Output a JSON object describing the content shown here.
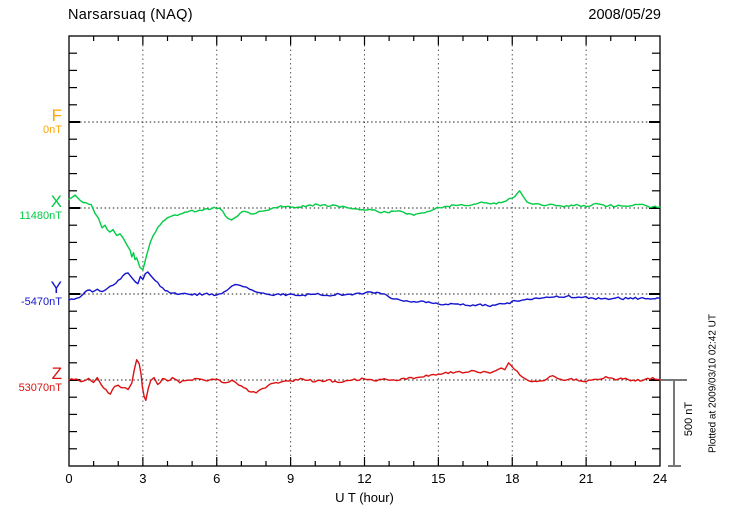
{
  "header": {
    "title": "Narsarsuaq (NAQ)",
    "date": "2008/05/29"
  },
  "axis": {
    "xlabel": "U T (hour)"
  },
  "scale_bar": {
    "label": "500 nT",
    "nT": 500
  },
  "footer_note": "Plotted at 2009/03/10 02:42 UT",
  "chart_data": {
    "type": "line",
    "title": "Narsarsuaq (NAQ)",
    "date": "2008/05/29",
    "xlabel": "U T (hour)",
    "x_range": [
      0,
      24
    ],
    "x_ticks": [
      0,
      3,
      6,
      9,
      12,
      15,
      18,
      21,
      24
    ],
    "grid": true,
    "y_unit": "nT",
    "minor_tick_nT": 100,
    "trace_spacing_nT": 500,
    "scale_bar_nT": 500,
    "series": [
      {
        "name": "F",
        "color": "#FFA500",
        "baseline_nT": 0,
        "baseline_label": "0nT",
        "points": []
      },
      {
        "name": "X",
        "color": "#00CC44",
        "baseline_nT": 11480,
        "baseline_label": "11480nT",
        "points": [
          [
            0,
            52
          ],
          [
            0.25,
            75
          ],
          [
            0.45,
            45
          ],
          [
            0.7,
            30
          ],
          [
            0.9,
            20
          ],
          [
            1.05,
            -30
          ],
          [
            1.2,
            -60
          ],
          [
            1.34,
            -115
          ],
          [
            1.46,
            -100
          ],
          [
            1.55,
            -125
          ],
          [
            1.66,
            -140
          ],
          [
            1.79,
            -125
          ],
          [
            1.95,
            -160
          ],
          [
            2.07,
            -150
          ],
          [
            2.2,
            -175
          ],
          [
            2.35,
            -215
          ],
          [
            2.48,
            -245
          ],
          [
            2.55,
            -285
          ],
          [
            2.62,
            -260
          ],
          [
            2.68,
            -300
          ],
          [
            2.75,
            -290
          ],
          [
            2.88,
            -345
          ],
          [
            3.0,
            -360
          ],
          [
            3.15,
            -275
          ],
          [
            3.3,
            -200
          ],
          [
            3.42,
            -160
          ],
          [
            3.62,
            -110
          ],
          [
            3.9,
            -70
          ],
          [
            4.3,
            -40
          ],
          [
            4.8,
            -23
          ],
          [
            5.3,
            -12
          ],
          [
            5.8,
            -3
          ],
          [
            6.1,
            0
          ],
          [
            6.25,
            -20
          ],
          [
            6.45,
            -60
          ],
          [
            6.6,
            -70
          ],
          [
            6.75,
            -55
          ],
          [
            6.95,
            -30
          ],
          [
            7.15,
            -20
          ],
          [
            7.4,
            -35
          ],
          [
            7.6,
            -30
          ],
          [
            7.9,
            -18
          ],
          [
            8.2,
            -5
          ],
          [
            8.5,
            5
          ],
          [
            8.9,
            10
          ],
          [
            9.3,
            5
          ],
          [
            9.7,
            15
          ],
          [
            10.1,
            20
          ],
          [
            10.5,
            10
          ],
          [
            10.9,
            12
          ],
          [
            11.3,
            2
          ],
          [
            11.7,
            -5
          ],
          [
            12.1,
            -12
          ],
          [
            12.5,
            -18
          ],
          [
            12.9,
            -25
          ],
          [
            13.3,
            -18
          ],
          [
            13.7,
            -35
          ],
          [
            14.1,
            -35
          ],
          [
            14.45,
            -28
          ],
          [
            14.75,
            -12
          ],
          [
            15.05,
            2
          ],
          [
            15.35,
            10
          ],
          [
            15.65,
            16
          ],
          [
            15.95,
            20
          ],
          [
            16.25,
            14
          ],
          [
            16.55,
            24
          ],
          [
            16.85,
            30
          ],
          [
            17.15,
            24
          ],
          [
            17.45,
            33
          ],
          [
            17.75,
            40
          ],
          [
            18.0,
            58
          ],
          [
            18.3,
            100
          ],
          [
            18.45,
            66
          ],
          [
            18.6,
            35
          ],
          [
            18.85,
            22
          ],
          [
            19.2,
            16
          ],
          [
            19.55,
            22
          ],
          [
            19.9,
            14
          ],
          [
            20.3,
            10
          ],
          [
            20.7,
            16
          ],
          [
            21.1,
            10
          ],
          [
            21.5,
            24
          ],
          [
            21.9,
            12
          ],
          [
            22.3,
            16
          ],
          [
            22.7,
            10
          ],
          [
            23.1,
            20
          ],
          [
            23.5,
            10
          ],
          [
            24,
            5
          ]
        ]
      },
      {
        "name": "Y",
        "color": "#1414CC",
        "baseline_nT": -5470,
        "baseline_label": "-5470nT",
        "points": [
          [
            0,
            -35
          ],
          [
            0.3,
            -25
          ],
          [
            0.55,
            -5
          ],
          [
            0.75,
            22
          ],
          [
            0.95,
            12
          ],
          [
            1.15,
            28
          ],
          [
            1.35,
            14
          ],
          [
            1.55,
            32
          ],
          [
            1.8,
            52
          ],
          [
            2.0,
            80
          ],
          [
            2.2,
            108
          ],
          [
            2.4,
            122
          ],
          [
            2.55,
            95
          ],
          [
            2.7,
            70
          ],
          [
            2.8,
            60
          ],
          [
            2.9,
            102
          ],
          [
            3.0,
            85
          ],
          [
            3.1,
            118
          ],
          [
            3.2,
            128
          ],
          [
            3.35,
            102
          ],
          [
            3.5,
            78
          ],
          [
            3.7,
            45
          ],
          [
            3.9,
            20
          ],
          [
            4.1,
            6
          ],
          [
            4.5,
            0
          ],
          [
            5.0,
            -6
          ],
          [
            5.5,
            0
          ],
          [
            6.0,
            -6
          ],
          [
            6.2,
            2
          ],
          [
            6.4,
            20
          ],
          [
            6.6,
            45
          ],
          [
            6.75,
            55
          ],
          [
            6.95,
            50
          ],
          [
            7.2,
            40
          ],
          [
            7.45,
            22
          ],
          [
            7.7,
            8
          ],
          [
            8.0,
            0
          ],
          [
            8.6,
            -6
          ],
          [
            9.0,
            0
          ],
          [
            9.5,
            -6
          ],
          [
            10.0,
            -2
          ],
          [
            10.5,
            -8
          ],
          [
            11.0,
            -2
          ],
          [
            11.5,
            -6
          ],
          [
            12.0,
            4
          ],
          [
            12.3,
            10
          ],
          [
            12.7,
            0
          ],
          [
            13.0,
            -18
          ],
          [
            13.5,
            -38
          ],
          [
            14.0,
            -44
          ],
          [
            14.5,
            -50
          ],
          [
            15.0,
            -58
          ],
          [
            15.4,
            -62
          ],
          [
            15.8,
            -58
          ],
          [
            16.2,
            -66
          ],
          [
            16.6,
            -62
          ],
          [
            17.0,
            -68
          ],
          [
            17.4,
            -60
          ],
          [
            17.8,
            -52
          ],
          [
            18.2,
            -42
          ],
          [
            18.7,
            -32
          ],
          [
            19.2,
            -24
          ],
          [
            19.7,
            -18
          ],
          [
            20.2,
            -14
          ],
          [
            20.7,
            -18
          ],
          [
            21.2,
            -22
          ],
          [
            21.7,
            -27
          ],
          [
            22.2,
            -23
          ],
          [
            22.7,
            -28
          ],
          [
            23.2,
            -24
          ],
          [
            23.7,
            -28
          ],
          [
            24,
            -25
          ]
        ]
      },
      {
        "name": "Z",
        "color": "#DD1111",
        "baseline_nT": 53070,
        "baseline_label": "53070nT",
        "points": [
          [
            0,
            0
          ],
          [
            0.3,
            6
          ],
          [
            0.5,
            -10
          ],
          [
            0.8,
            10
          ],
          [
            1.0,
            -14
          ],
          [
            1.15,
            14
          ],
          [
            1.3,
            -25
          ],
          [
            1.5,
            -55
          ],
          [
            1.68,
            -82
          ],
          [
            1.85,
            -38
          ],
          [
            2.0,
            -30
          ],
          [
            2.2,
            -45
          ],
          [
            2.4,
            -55
          ],
          [
            2.55,
            -18
          ],
          [
            2.65,
            60
          ],
          [
            2.75,
            118
          ],
          [
            2.85,
            95
          ],
          [
            2.92,
            40
          ],
          [
            2.98,
            -40
          ],
          [
            3.05,
            -95
          ],
          [
            3.12,
            -118
          ],
          [
            3.22,
            -48
          ],
          [
            3.32,
            -2
          ],
          [
            3.45,
            14
          ],
          [
            3.6,
            -26
          ],
          [
            3.8,
            8
          ],
          [
            4.0,
            -6
          ],
          [
            4.2,
            14
          ],
          [
            4.5,
            -16
          ],
          [
            4.8,
            -2
          ],
          [
            5.2,
            8
          ],
          [
            5.6,
            -6
          ],
          [
            6.0,
            4
          ],
          [
            6.3,
            -16
          ],
          [
            6.6,
            -2
          ],
          [
            6.9,
            -30
          ],
          [
            7.1,
            -45
          ],
          [
            7.4,
            -70
          ],
          [
            7.6,
            -75
          ],
          [
            7.85,
            -50
          ],
          [
            8.1,
            -30
          ],
          [
            8.4,
            -15
          ],
          [
            8.7,
            -8
          ],
          [
            9.0,
            -4
          ],
          [
            9.5,
            6
          ],
          [
            10.0,
            -10
          ],
          [
            10.5,
            0
          ],
          [
            11.0,
            -14
          ],
          [
            11.5,
            0
          ],
          [
            12.0,
            6
          ],
          [
            12.4,
            -5
          ],
          [
            12.8,
            8
          ],
          [
            13.2,
            0
          ],
          [
            13.6,
            10
          ],
          [
            14.0,
            8
          ],
          [
            14.4,
            18
          ],
          [
            14.7,
            30
          ],
          [
            15.0,
            35
          ],
          [
            15.3,
            45
          ],
          [
            15.6,
            40
          ],
          [
            15.85,
            50
          ],
          [
            16.1,
            45
          ],
          [
            16.35,
            55
          ],
          [
            16.6,
            45
          ],
          [
            16.85,
            50
          ],
          [
            17.1,
            40
          ],
          [
            17.35,
            55
          ],
          [
            17.55,
            70
          ],
          [
            17.7,
            60
          ],
          [
            17.85,
            100
          ],
          [
            17.95,
            85
          ],
          [
            18.1,
            60
          ],
          [
            18.3,
            30
          ],
          [
            18.55,
            5
          ],
          [
            18.8,
            -10
          ],
          [
            19.1,
            -5
          ],
          [
            19.4,
            5
          ],
          [
            19.65,
            25
          ],
          [
            19.85,
            8
          ],
          [
            20.2,
            0
          ],
          [
            20.6,
            6
          ],
          [
            21.0,
            -10
          ],
          [
            21.4,
            4
          ],
          [
            21.8,
            20
          ],
          [
            22.2,
            0
          ],
          [
            22.6,
            10
          ],
          [
            23.0,
            -6
          ],
          [
            23.4,
            4
          ],
          [
            23.7,
            14
          ],
          [
            24,
            0
          ]
        ]
      }
    ]
  }
}
